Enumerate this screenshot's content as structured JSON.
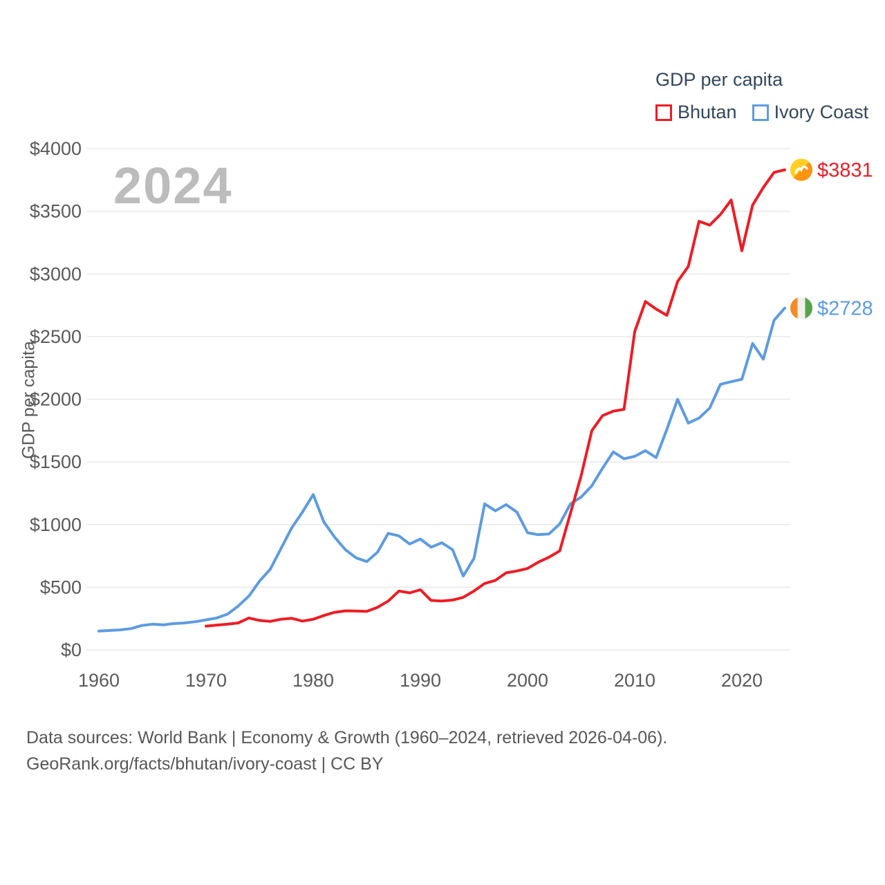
{
  "legend": {
    "title": "GDP per capita",
    "items": [
      {
        "label": "Bhutan",
        "color": "#ee1c25"
      },
      {
        "label": "Ivory Coast",
        "color": "#5d9be2"
      }
    ]
  },
  "watermark": "2024",
  "footer": {
    "line1": "Data sources: World Bank | Economy & Growth (1960–2024, retrieved 2026-04-06).",
    "line2": "GeoRank.org/facts/bhutan/ivory-coast | CC BY"
  },
  "chart_data": {
    "type": "line",
    "title": "GDP per capita",
    "xlabel": "",
    "ylabel": "GDP per capita",
    "xlim": [
      1960,
      2024
    ],
    "ylim": [
      0,
      4000
    ],
    "grid": true,
    "legend_position": "top-right",
    "x_ticks": {
      "values": [
        1960,
        1970,
        1980,
        1990,
        2000,
        2010,
        2020
      ],
      "labels": [
        "1960",
        "1970",
        "1980",
        "1990",
        "2000",
        "2010",
        "2020"
      ]
    },
    "y_ticks": {
      "values": [
        0,
        500,
        1000,
        1500,
        2000,
        2500,
        3000,
        3500,
        4000
      ],
      "labels": [
        "$0",
        "$500",
        "$1000",
        "$1500",
        "$2000",
        "$2500",
        "$3000",
        "$3500",
        "$4000"
      ]
    },
    "series": [
      {
        "name": "Ivory Coast",
        "color": "#5d9be2",
        "flag": "ivory-coast",
        "start_year": 1960,
        "end_label": "$2728",
        "end_value": 2728,
        "values": [
          150,
          155,
          160,
          170,
          195,
          205,
          200,
          210,
          215,
          225,
          240,
          255,
          285,
          350,
          430,
          550,
          645,
          810,
          975,
          1100,
          1240,
          1020,
          900,
          800,
          735,
          705,
          780,
          930,
          910,
          845,
          885,
          820,
          855,
          800,
          590,
          730,
          1165,
          1110,
          1160,
          1100,
          935,
          920,
          925,
          1005,
          1165,
          1220,
          1310,
          1450,
          1580,
          1525,
          1545,
          1590,
          1535,
          1760,
          2000,
          1810,
          1850,
          1930,
          2120,
          2140,
          2160,
          2445,
          2320,
          2630,
          2728
        ]
      },
      {
        "name": "Bhutan",
        "color": "#ee1c25",
        "flag": "bhutan",
        "start_year": 1970,
        "end_label": "$3831",
        "end_value": 3831,
        "values": [
          190,
          198,
          206,
          215,
          255,
          235,
          228,
          245,
          252,
          230,
          245,
          275,
          300,
          312,
          310,
          308,
          340,
          390,
          470,
          455,
          480,
          395,
          390,
          398,
          420,
          470,
          530,
          555,
          615,
          630,
          650,
          700,
          740,
          790,
          1090,
          1390,
          1750,
          1870,
          1905,
          1920,
          2540,
          2780,
          2720,
          2670,
          2940,
          3060,
          3420,
          3390,
          3475,
          3590,
          3185,
          3550,
          3690,
          3810,
          3831
        ]
      }
    ],
    "flag_colors": {
      "bhutan": {
        "top": "#ffd022",
        "bottom": "#ff9412",
        "dragon": "#ffffff"
      },
      "ivory_coast": {
        "left": "#f28c28",
        "middle": "#f2f0eb",
        "right": "#55a546"
      }
    }
  }
}
